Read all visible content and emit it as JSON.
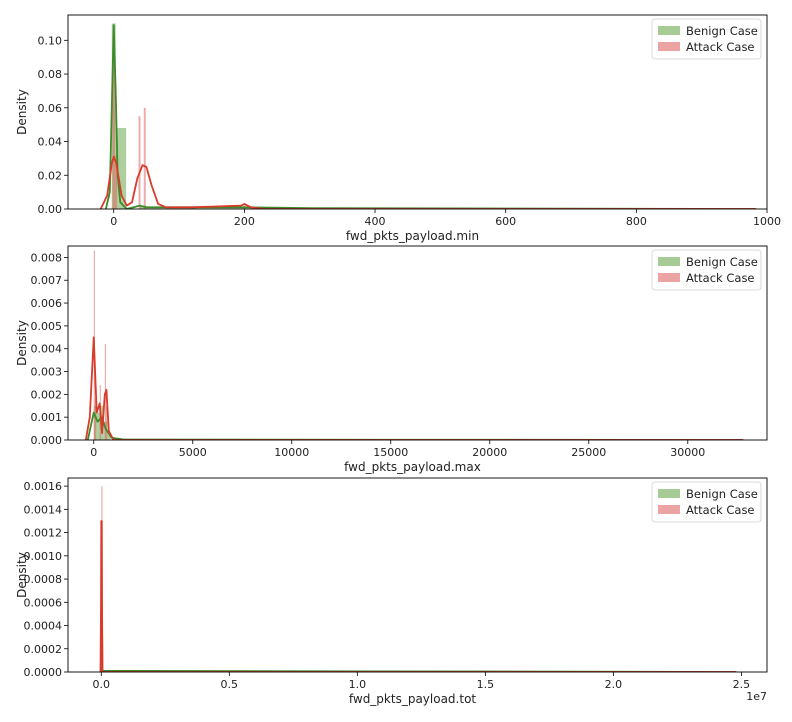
{
  "figure_title": "",
  "chart_data": [
    {
      "type": "histogram-kde",
      "xlabel": "fwd_pkts_payload.min",
      "ylabel": "Density",
      "xlim": [
        -70,
        1000
      ],
      "ylim": [
        0,
        0.115
      ],
      "xticks": [
        0,
        200,
        400,
        600,
        800,
        1000
      ],
      "xtick_labels": [
        "0",
        "200",
        "400",
        "600",
        "800",
        "1000"
      ],
      "yticks": [
        0,
        0.02,
        0.04,
        0.06,
        0.08,
        0.1
      ],
      "ytick_labels": [
        "0.00",
        "0.02",
        "0.04",
        "0.06",
        "0.08",
        "0.10"
      ],
      "x_offset_label": "",
      "grid": false,
      "legend": {
        "placement": "top-right",
        "entries": [
          "Benign Case",
          "Attack Case"
        ]
      },
      "series": [
        {
          "name": "Benign Case",
          "color": "#6aa84f",
          "line_color": "#3d8b2a",
          "bars": [
            {
              "x0": -3,
              "x1": 3,
              "h": 0.11
            },
            {
              "x0": 3,
              "x1": 19,
              "h": 0.048
            },
            {
              "x0": 40,
              "x1": 50,
              "h": 0.002
            },
            {
              "x0": 118,
              "x1": 126,
              "h": 0.001
            }
          ],
          "kde": [
            [
              -12,
              0
            ],
            [
              -6,
              0.01
            ],
            [
              -3,
              0.06
            ],
            [
              0,
              0.109
            ],
            [
              3,
              0.07
            ],
            [
              6,
              0.02
            ],
            [
              10,
              0.004
            ],
            [
              20,
              0
            ],
            [
              40,
              0.002
            ],
            [
              50,
              0.001
            ],
            [
              120,
              0.001
            ],
            [
              200,
              0.001
            ],
            [
              300,
              0.0005
            ],
            [
              983,
              0
            ]
          ]
        },
        {
          "name": "Attack Case",
          "color": "#e06666",
          "line_color": "#d93b2b",
          "bars": [
            {
              "x0": -2,
              "x1": 2,
              "h": 0.093
            },
            {
              "x0": 2,
              "x1": 5,
              "h": 0.032
            },
            {
              "x0": 38,
              "x1": 41,
              "h": 0.055
            },
            {
              "x0": 46,
              "x1": 49,
              "h": 0.06
            },
            {
              "x0": 198,
              "x1": 202,
              "h": 0.002
            }
          ],
          "kde": [
            [
              -20,
              0
            ],
            [
              -10,
              0.008
            ],
            [
              -3,
              0.027
            ],
            [
              0,
              0.031
            ],
            [
              4,
              0.027
            ],
            [
              12,
              0.008
            ],
            [
              20,
              0.002
            ],
            [
              28,
              0.004
            ],
            [
              36,
              0.018
            ],
            [
              44,
              0.026
            ],
            [
              50,
              0.025
            ],
            [
              58,
              0.014
            ],
            [
              68,
              0.003
            ],
            [
              80,
              0.001
            ],
            [
              120,
              0.001
            ],
            [
              195,
              0.002
            ],
            [
              200,
              0.003
            ],
            [
              210,
              0.001
            ],
            [
              230,
              0
            ],
            [
              983,
              0
            ]
          ]
        }
      ]
    },
    {
      "type": "histogram-kde",
      "xlabel": "fwd_pkts_payload.max",
      "ylabel": "Density",
      "xlim": [
        -1300,
        34000
      ],
      "ylim": [
        0,
        0.0085
      ],
      "xticks": [
        0,
        5000,
        10000,
        15000,
        20000,
        25000,
        30000
      ],
      "xtick_labels": [
        "0",
        "5000",
        "10000",
        "15000",
        "20000",
        "25000",
        "30000"
      ],
      "yticks": [
        0,
        0.001,
        0.002,
        0.003,
        0.004,
        0.005,
        0.006,
        0.007,
        0.008
      ],
      "ytick_labels": [
        "0.000",
        "0.001",
        "0.002",
        "0.003",
        "0.004",
        "0.005",
        "0.006",
        "0.007",
        "0.008"
      ],
      "x_offset_label": "",
      "grid": false,
      "legend": {
        "placement": "top-right",
        "entries": [
          "Benign Case",
          "Attack Case"
        ]
      },
      "series": [
        {
          "name": "Benign Case",
          "color": "#6aa84f",
          "line_color": "#3d8b2a",
          "bars": [
            {
              "x0": 0,
              "x1": 170,
              "h": 0.0015
            },
            {
              "x0": 170,
              "x1": 340,
              "h": 0.0012
            },
            {
              "x0": 340,
              "x1": 510,
              "h": 0.0015
            },
            {
              "x0": 510,
              "x1": 680,
              "h": 0.0008
            },
            {
              "x0": 680,
              "x1": 850,
              "h": 0.0003
            }
          ],
          "kde": [
            [
              -300,
              0
            ],
            [
              0,
              0.0012
            ],
            [
              200,
              0.0008
            ],
            [
              400,
              0.001
            ],
            [
              600,
              0.0005
            ],
            [
              900,
              0.0001
            ],
            [
              1500,
              2e-05
            ],
            [
              32800,
              0
            ]
          ]
        },
        {
          "name": "Attack Case",
          "color": "#e06666",
          "line_color": "#d93b2b",
          "bars": [
            {
              "x0": 0,
              "x1": 60,
              "h": 0.0083
            },
            {
              "x0": 60,
              "x1": 120,
              "h": 0.0018
            },
            {
              "x0": 300,
              "x1": 360,
              "h": 0.0024
            },
            {
              "x0": 560,
              "x1": 620,
              "h": 0.0042
            },
            {
              "x0": 620,
              "x1": 680,
              "h": 0.0015
            }
          ],
          "kde": [
            [
              -400,
              0
            ],
            [
              -200,
              0.001
            ],
            [
              0,
              0.0045
            ],
            [
              150,
              0.0012
            ],
            [
              300,
              0.0016
            ],
            [
              420,
              0.0003
            ],
            [
              560,
              0.002
            ],
            [
              640,
              0.0022
            ],
            [
              760,
              0.0004
            ],
            [
              1000,
              0
            ],
            [
              32800,
              0
            ]
          ]
        }
      ]
    },
    {
      "type": "histogram-kde",
      "xlabel": "fwd_pkts_payload.tot",
      "ylabel": "Density",
      "xlim": [
        -1300000,
        26000000
      ],
      "ylim": [
        0,
        0.00167
      ],
      "xticks": [
        0,
        5000000,
        10000000,
        15000000,
        20000000,
        25000000
      ],
      "xtick_labels": [
        "0.0",
        "0.5",
        "1.0",
        "1.5",
        "2.0",
        "2.5"
      ],
      "yticks": [
        0,
        0.0002,
        0.0004,
        0.0006,
        0.0008,
        0.001,
        0.0012,
        0.0014,
        0.0016
      ],
      "ytick_labels": [
        "0.0000",
        "0.0002",
        "0.0004",
        "0.0006",
        "0.0008",
        "0.0010",
        "0.0012",
        "0.0014",
        "0.0016"
      ],
      "x_offset_label": "1e7",
      "grid": false,
      "legend": {
        "placement": "top-right",
        "entries": [
          "Benign Case",
          "Attack Case"
        ]
      },
      "series": [
        {
          "name": "Benign Case",
          "color": "#6aa84f",
          "line_color": "#3d8b2a",
          "bars": [
            {
              "x0": 0,
              "x1": 20000,
              "h": 0.0003
            }
          ],
          "kde": [
            [
              -20000,
              0
            ],
            [
              0,
              0.0003
            ],
            [
              30000,
              1e-05
            ],
            [
              24800000,
              0
            ]
          ]
        },
        {
          "name": "Attack Case",
          "color": "#e06666",
          "line_color": "#d93b2b",
          "bars": [
            {
              "x0": 0,
              "x1": 15000,
              "h": 0.0016
            },
            {
              "x0": 15000,
              "x1": 30000,
              "h": 0.0013
            }
          ],
          "kde": [
            [
              -30000,
              0
            ],
            [
              -10000,
              0.0006
            ],
            [
              0,
              0.0013
            ],
            [
              15000,
              0.0013
            ],
            [
              30000,
              0.0005
            ],
            [
              50000,
              0
            ],
            [
              24800000,
              0
            ]
          ]
        }
      ]
    }
  ]
}
